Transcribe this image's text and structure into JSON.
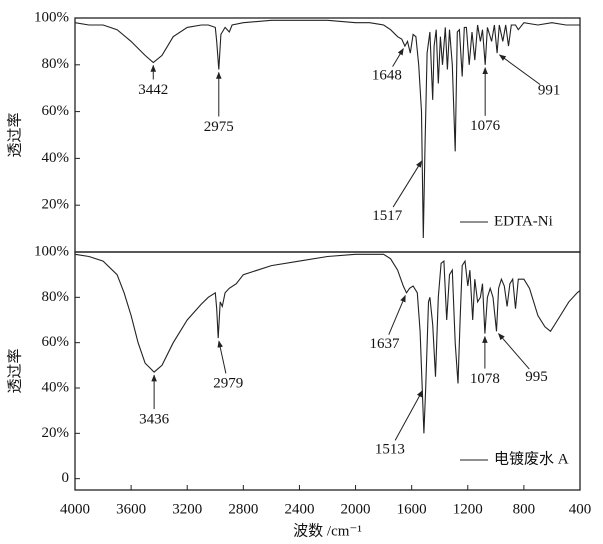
{
  "chart_data": [
    {
      "type": "line",
      "ylabel": "透过率",
      "xlim": [
        4000,
        400
      ],
      "ylim": [
        0,
        100
      ],
      "yticks": [
        {
          "value": 20,
          "label": "20%"
        },
        {
          "value": 40,
          "label": "40%"
        },
        {
          "value": 60,
          "label": "60%"
        },
        {
          "value": 80,
          "label": "80%"
        },
        {
          "value": 100,
          "label": "100%"
        }
      ],
      "legend": "lower right",
      "x": [
        4000,
        3900,
        3800,
        3700,
        3600,
        3500,
        3442,
        3380,
        3300,
        3200,
        3100,
        3050,
        3000,
        2990,
        2975,
        2960,
        2930,
        2900,
        2880,
        2800,
        2600,
        2400,
        2200,
        2000,
        1900,
        1800,
        1750,
        1700,
        1670,
        1648,
        1630,
        1610,
        1590,
        1570,
        1550,
        1530,
        1517,
        1505,
        1490,
        1470,
        1450,
        1440,
        1425,
        1410,
        1395,
        1380,
        1360,
        1345,
        1330,
        1310,
        1290,
        1275,
        1260,
        1240,
        1225,
        1210,
        1190,
        1170,
        1150,
        1130,
        1110,
        1095,
        1076,
        1060,
        1030,
        1010,
        991,
        975,
        950,
        930,
        910,
        890,
        860,
        840,
        800,
        700,
        600,
        500,
        400
      ],
      "series": [
        {
          "name": "EDTA-Ni",
          "color": "#222222",
          "values": [
            98,
            97,
            97,
            95,
            90,
            84,
            81,
            84,
            92,
            96,
            97,
            97,
            96,
            90,
            78,
            93,
            96,
            94,
            97,
            98,
            99,
            99,
            99,
            98,
            98,
            97,
            95,
            92,
            91,
            88,
            90,
            85,
            93,
            92,
            80,
            60,
            6,
            45,
            85,
            94,
            65,
            88,
            95,
            72,
            92,
            80,
            96,
            78,
            95,
            80,
            43,
            94,
            95,
            75,
            96,
            96,
            80,
            94,
            82,
            97,
            90,
            95,
            80,
            96,
            90,
            97,
            85,
            97,
            90,
            97,
            88,
            97,
            97,
            95,
            98,
            97,
            98,
            97,
            97
          ]
        }
      ],
      "annotations": [
        {
          "text": "3442",
          "x": 3442,
          "y": 81
        },
        {
          "text": "2975",
          "x": 2975,
          "y": 78
        },
        {
          "text": "1648",
          "x": 1648,
          "y": 88
        },
        {
          "text": "1517",
          "x": 1517,
          "y": 40
        },
        {
          "text": "1076",
          "x": 1076,
          "y": 80
        },
        {
          "text": "991",
          "x": 991,
          "y": 85
        }
      ]
    },
    {
      "type": "line",
      "ylabel": "透过率",
      "xlabel": "波数 /cm⁻¹",
      "xlim": [
        4000,
        400
      ],
      "ylim": [
        -5,
        100
      ],
      "xticks": [
        4000,
        3600,
        3200,
        2800,
        2400,
        2000,
        1600,
        1200,
        800,
        400
      ],
      "yticks": [
        0,
        {
          "value": 20,
          "label": "20%"
        },
        {
          "value": 40,
          "label": "40%"
        },
        {
          "value": 60,
          "label": "60%"
        },
        {
          "value": 80,
          "label": "80%"
        },
        {
          "value": 100,
          "label": "100%"
        }
      ],
      "legend": "lower right",
      "x": [
        4000,
        3900,
        3800,
        3700,
        3650,
        3600,
        3550,
        3500,
        3436,
        3380,
        3300,
        3200,
        3100,
        3050,
        3000,
        2990,
        2979,
        2965,
        2950,
        2930,
        2900,
        2850,
        2800,
        2600,
        2400,
        2200,
        2000,
        1900,
        1800,
        1750,
        1700,
        1660,
        1637,
        1615,
        1590,
        1560,
        1540,
        1513,
        1500,
        1480,
        1470,
        1450,
        1430,
        1410,
        1390,
        1370,
        1350,
        1330,
        1310,
        1290,
        1270,
        1255,
        1240,
        1220,
        1200,
        1185,
        1165,
        1150,
        1130,
        1110,
        1095,
        1078,
        1060,
        1040,
        1020,
        995,
        980,
        960,
        940,
        920,
        900,
        880,
        860,
        840,
        820,
        800,
        760,
        700,
        650,
        610,
        580,
        540,
        480,
        420,
        400
      ],
      "series": [
        {
          "name": "电镀废水 A",
          "color": "#222222",
          "values": [
            99,
            98,
            96,
            90,
            82,
            72,
            60,
            51,
            47,
            50,
            60,
            70,
            77,
            80,
            82,
            75,
            62,
            78,
            76,
            82,
            84,
            86,
            90,
            94,
            96,
            98,
            99,
            99,
            99,
            97,
            92,
            85,
            82,
            84,
            85,
            82,
            65,
            20,
            40,
            78,
            80,
            68,
            45,
            80,
            95,
            96,
            70,
            90,
            92,
            60,
            42,
            70,
            94,
            96,
            85,
            92,
            70,
            88,
            78,
            80,
            86,
            64,
            80,
            84,
            80,
            65,
            84,
            88,
            85,
            76,
            86,
            88,
            75,
            88,
            88,
            88,
            84,
            72,
            67,
            65,
            68,
            72,
            78,
            82,
            83
          ]
        }
      ],
      "annotations": [
        {
          "text": "3436",
          "x": 3436,
          "y": 47
        },
        {
          "text": "2979",
          "x": 2979,
          "y": 62
        },
        {
          "text": "1637",
          "x": 1637,
          "y": 82
        },
        {
          "text": "1513",
          "x": 1513,
          "y": 40
        },
        {
          "text": "1078",
          "x": 1078,
          "y": 64
        },
        {
          "text": "995",
          "x": 995,
          "y": 65
        }
      ]
    }
  ]
}
